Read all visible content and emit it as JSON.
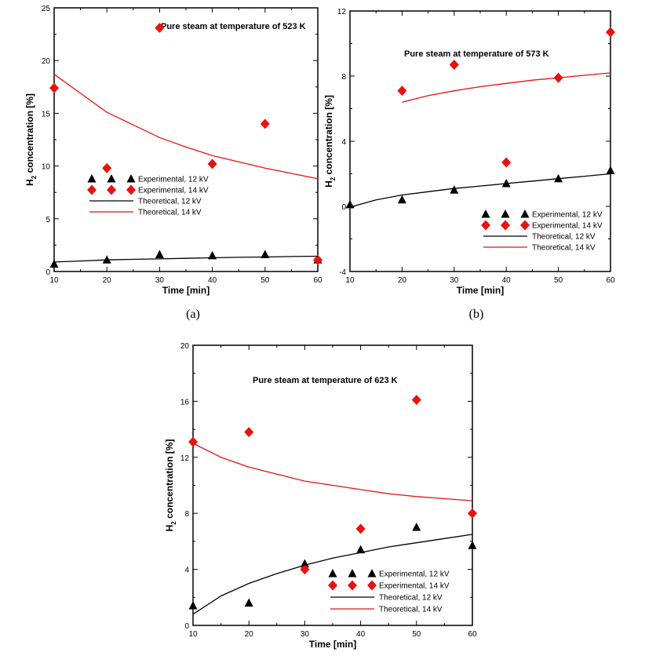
{
  "colors": {
    "red": "#e8120f",
    "black": "#000000"
  },
  "chart_data": [
    {
      "type": "scatter",
      "panel": "(a)",
      "annotation": "Pure steam at temperature of 523 K",
      "xlabel": "Time [min]",
      "ylabel_main": "H",
      "ylabel_sub": "2",
      "ylabel_rest": " concentration [%]",
      "xlim": [
        10,
        60
      ],
      "ylim": [
        0,
        25
      ],
      "xticks": [
        10,
        20,
        30,
        40,
        50,
        60
      ],
      "yticks": [
        0,
        5,
        10,
        15,
        20,
        25
      ],
      "legend": [
        "Experimental, 12 kV",
        "Experimental, 14 kV",
        "Theoretical, 12 kV",
        "Theoretical, 14 kV"
      ],
      "series": [
        {
          "name": "Experimental, 12 kV",
          "marker": "triangle",
          "color": "#000000",
          "x": [
            10,
            20,
            30,
            40,
            50,
            60
          ],
          "y": [
            0.7,
            1.1,
            1.6,
            1.5,
            1.6,
            1.1
          ]
        },
        {
          "name": "Experimental, 14 kV",
          "marker": "diamond",
          "color": "#e8120f",
          "x": [
            10,
            20,
            30,
            40,
            50,
            60
          ],
          "y": [
            17.4,
            9.8,
            23.1,
            10.2,
            14.0,
            1.1
          ]
        },
        {
          "name": "Theoretical, 12 kV",
          "line": true,
          "color": "#000000",
          "x": [
            10,
            15,
            20,
            25,
            30,
            35,
            40,
            45,
            50,
            55,
            60
          ],
          "y": [
            0.9,
            1.0,
            1.1,
            1.15,
            1.2,
            1.25,
            1.3,
            1.35,
            1.38,
            1.42,
            1.45
          ]
        },
        {
          "name": "Theoretical, 14 kV",
          "line": true,
          "color": "#e8120f",
          "x": [
            10,
            15,
            20,
            25,
            30,
            35,
            40,
            45,
            50,
            55,
            60
          ],
          "y": [
            18.7,
            16.9,
            15.1,
            13.9,
            12.7,
            11.8,
            11.0,
            10.4,
            9.8,
            9.3,
            8.8
          ]
        }
      ]
    },
    {
      "type": "scatter",
      "panel": "(b)",
      "annotation": "Pure steam at temperature of 573 K",
      "xlabel": "Time [min]",
      "ylabel_main": "H",
      "ylabel_sub": "2",
      "ylabel_rest": " concentration [%]",
      "xlim": [
        10,
        60
      ],
      "ylim": [
        -4,
        12
      ],
      "xticks": [
        10,
        20,
        30,
        40,
        50,
        60
      ],
      "yticks": [
        -4,
        0,
        4,
        8,
        12
      ],
      "legend": [
        "Experimental, 12 kV",
        "Experimental, 14 kV",
        "Theoretical, 12 kV",
        "Theoretical, 14 kV"
      ],
      "series": [
        {
          "name": "Experimental, 12 kV",
          "marker": "triangle",
          "color": "#000000",
          "x": [
            10,
            20,
            30,
            40,
            50,
            60
          ],
          "y": [
            0.1,
            0.4,
            1.0,
            1.4,
            1.7,
            2.2
          ]
        },
        {
          "name": "Experimental, 14 kV",
          "marker": "diamond",
          "color": "#e8120f",
          "x": [
            20,
            30,
            40,
            50,
            60
          ],
          "y": [
            7.1,
            8.7,
            2.7,
            7.9,
            10.7
          ]
        },
        {
          "name": "Theoretical, 12 kV",
          "line": true,
          "color": "#000000",
          "x": [
            10,
            15,
            20,
            25,
            30,
            35,
            40,
            45,
            50,
            55,
            60
          ],
          "y": [
            -0.05,
            0.4,
            0.7,
            0.9,
            1.1,
            1.25,
            1.4,
            1.55,
            1.7,
            1.85,
            2.0
          ]
        },
        {
          "name": "Theoretical, 14 kV",
          "line": true,
          "color": "#e8120f",
          "x": [
            20,
            25,
            30,
            35,
            40,
            45,
            50,
            55,
            60
          ],
          "y": [
            6.4,
            6.8,
            7.1,
            7.35,
            7.55,
            7.75,
            7.9,
            8.05,
            8.2
          ]
        }
      ]
    },
    {
      "type": "scatter",
      "panel": "",
      "annotation": "Pure steam at temperature of 623 K",
      "xlabel": "Time [min]",
      "ylabel_main": "H",
      "ylabel_sub": "2",
      "ylabel_rest": " concentration [%]",
      "xlim": [
        10,
        60
      ],
      "ylim": [
        0,
        20
      ],
      "xticks": [
        10,
        20,
        30,
        40,
        50,
        60
      ],
      "yticks": [
        0,
        4,
        8,
        12,
        16,
        20
      ],
      "legend": [
        "Experimental, 12 kV",
        "Experimental, 14 kV",
        "Theoretical, 12 kV",
        "Theoretical, 14 kV"
      ],
      "series": [
        {
          "name": "Experimental, 12 kV",
          "marker": "triangle",
          "color": "#000000",
          "x": [
            10,
            20,
            30,
            40,
            50,
            60
          ],
          "y": [
            1.4,
            1.6,
            4.4,
            5.4,
            7.0,
            5.7
          ]
        },
        {
          "name": "Experimental, 14 kV",
          "marker": "diamond",
          "color": "#e8120f",
          "x": [
            10,
            20,
            30,
            40,
            50,
            60
          ],
          "y": [
            13.1,
            13.8,
            4.0,
            6.9,
            16.1,
            8.0
          ]
        },
        {
          "name": "Theoretical, 12 kV",
          "line": true,
          "color": "#000000",
          "x": [
            10,
            15,
            20,
            25,
            30,
            35,
            40,
            45,
            50,
            55,
            60
          ],
          "y": [
            0.8,
            2.1,
            3.0,
            3.7,
            4.3,
            4.8,
            5.2,
            5.6,
            5.9,
            6.2,
            6.5
          ]
        },
        {
          "name": "Theoretical, 14 kV",
          "line": true,
          "color": "#e8120f",
          "x": [
            10,
            15,
            20,
            25,
            30,
            35,
            40,
            45,
            50,
            55,
            60
          ],
          "y": [
            13.0,
            12.0,
            11.3,
            10.8,
            10.3,
            10.0,
            9.7,
            9.4,
            9.2,
            9.05,
            8.9
          ]
        }
      ]
    }
  ]
}
